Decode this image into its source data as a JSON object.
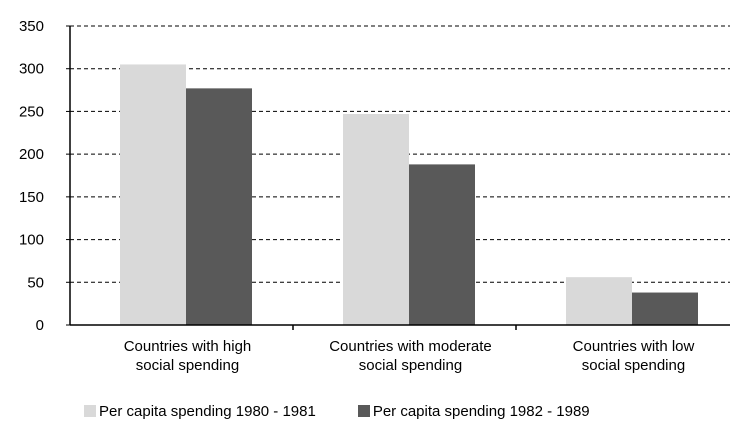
{
  "chart_data": {
    "type": "bar",
    "title": "",
    "xlabel": "",
    "ylabel": "",
    "categories": [
      [
        "Countries with high",
        "social spending"
      ],
      [
        "Countries with moderate",
        "social spending"
      ],
      [
        "Countries with low",
        "social spending"
      ]
    ],
    "series": [
      {
        "name": "Per capita spending 1980 - 1981",
        "color": "#d9d9d9",
        "values": [
          305,
          247,
          56
        ]
      },
      {
        "name": "Per capita spending 1982 - 1989",
        "color": "#595959",
        "values": [
          277,
          188,
          38
        ]
      }
    ],
    "ylim": [
      0,
      350
    ],
    "yticks": [
      "0",
      "50",
      "100",
      "150",
      "200",
      "250",
      "300",
      "350"
    ],
    "grid": "dashed horizontal",
    "legend_position": "bottom"
  }
}
